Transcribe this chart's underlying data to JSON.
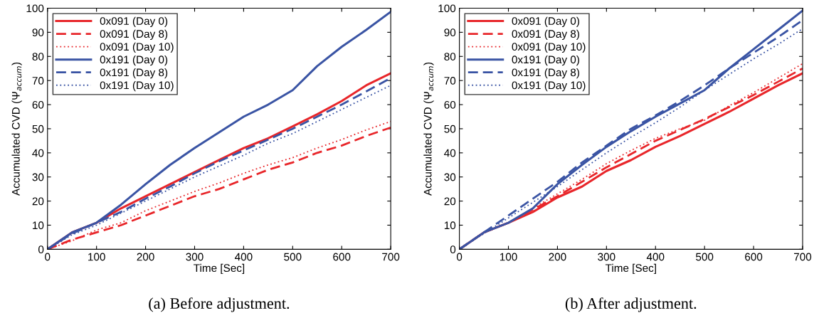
{
  "chart_data": [
    {
      "type": "line",
      "xlabel": "Time [Sec]",
      "ylabel": "Accumulated CVD (Ψ$_{accum}$)",
      "annotations": [
        "(a) Before adjustment."
      ],
      "x": [
        0,
        50,
        100,
        150,
        200,
        250,
        300,
        350,
        400,
        450,
        500,
        550,
        600,
        650,
        700
      ],
      "xlim": [
        0,
        700
      ],
      "ylim": [
        0,
        100
      ],
      "xticks": [
        0,
        100,
        200,
        300,
        400,
        500,
        600,
        700
      ],
      "yticks": [
        0,
        10,
        20,
        30,
        40,
        50,
        60,
        70,
        80,
        90,
        100
      ],
      "legend": "top left",
      "grid": false,
      "series": [
        {
          "name": "0x091 (Day 0)",
          "color": "#e8262a",
          "line_style": "solid",
          "values": [
            0,
            7,
            11,
            17,
            22,
            27,
            32,
            37,
            42,
            46,
            51,
            56,
            61.5,
            68,
            73
          ]
        },
        {
          "name": "0x091 (Day 8)",
          "color": "#e8262a",
          "line_style": "dashed",
          "values": [
            0,
            4,
            7,
            10,
            14,
            18,
            22,
            25,
            29,
            33,
            36,
            40,
            43,
            47,
            50.5
          ]
        },
        {
          "name": "0x091 (Day 10)",
          "color": "#e8262a",
          "line_style": "dotted",
          "values": [
            0,
            3.5,
            8,
            11,
            16,
            20,
            24,
            27.5,
            31.5,
            35,
            38,
            42,
            45.5,
            49.5,
            53
          ]
        },
        {
          "name": "0x191 (Day 0)",
          "color": "#3a54a4",
          "line_style": "solid",
          "values": [
            0,
            7,
            11,
            18.5,
            27,
            35,
            42,
            48.5,
            55,
            60,
            66,
            76,
            84,
            91,
            98.5
          ]
        },
        {
          "name": "0x191 (Day 8)",
          "color": "#3a54a4",
          "line_style": "dashed",
          "values": [
            0,
            6.5,
            11,
            15.5,
            21,
            26,
            31.5,
            36.5,
            41,
            45.5,
            50,
            55,
            60,
            65.5,
            71
          ]
        },
        {
          "name": "0x191 (Day 10)",
          "color": "#3a54a4",
          "line_style": "dotted",
          "values": [
            0,
            6,
            10,
            15,
            20,
            25,
            30,
            34.5,
            39,
            44,
            48,
            53,
            58,
            63,
            68
          ]
        }
      ]
    },
    {
      "type": "line",
      "xlabel": "Time [Sec]",
      "ylabel": "Accumulated CVD (Ψ$_{accum}$)",
      "annotations": [
        "(b) After adjustment."
      ],
      "x": [
        0,
        50,
        100,
        150,
        200,
        250,
        300,
        350,
        400,
        450,
        500,
        550,
        600,
        650,
        700
      ],
      "xlim": [
        0,
        700
      ],
      "ylim": [
        0,
        100
      ],
      "xticks": [
        0,
        100,
        200,
        300,
        400,
        500,
        600,
        700
      ],
      "yticks": [
        0,
        10,
        20,
        30,
        40,
        50,
        60,
        70,
        80,
        90,
        100
      ],
      "legend": "top left",
      "grid": false,
      "series": [
        {
          "name": "0x091 (Day 0)",
          "color": "#e8262a",
          "line_style": "solid",
          "values": [
            0,
            7,
            11,
            15.5,
            21.5,
            26,
            32.5,
            37,
            42.5,
            47,
            52,
            57,
            62.5,
            68,
            73
          ]
        },
        {
          "name": "0x091 (Day 8)",
          "color": "#e8262a",
          "line_style": "dashed",
          "values": [
            0,
            7,
            11,
            16.5,
            22,
            28,
            34,
            39.5,
            45,
            49.5,
            54,
            59,
            64,
            69.5,
            75
          ]
        },
        {
          "name": "0x091 (Day 10)",
          "color": "#e8262a",
          "line_style": "dotted",
          "values": [
            0,
            7,
            11,
            17,
            23,
            29,
            35.5,
            41,
            46,
            50,
            53.5,
            59.5,
            65,
            71,
            77
          ]
        },
        {
          "name": "0x191 (Day 0)",
          "color": "#3a54a4",
          "line_style": "solid",
          "values": [
            0,
            7,
            11,
            17,
            27,
            35,
            42.5,
            49,
            55,
            60.5,
            66,
            75,
            83,
            91,
            99
          ]
        },
        {
          "name": "0x191 (Day 8)",
          "color": "#3a54a4",
          "line_style": "dashed",
          "values": [
            0,
            7,
            14,
            21,
            28,
            36,
            43,
            50,
            55.5,
            61.5,
            68,
            75,
            81.5,
            88,
            95
          ]
        },
        {
          "name": "0x191 (Day 10)",
          "color": "#3a54a4",
          "line_style": "dotted",
          "values": [
            0,
            6.5,
            13,
            19.5,
            26,
            33,
            40,
            46.5,
            52.5,
            59,
            66,
            72.5,
            79,
            85,
            91.5
          ]
        }
      ]
    }
  ]
}
